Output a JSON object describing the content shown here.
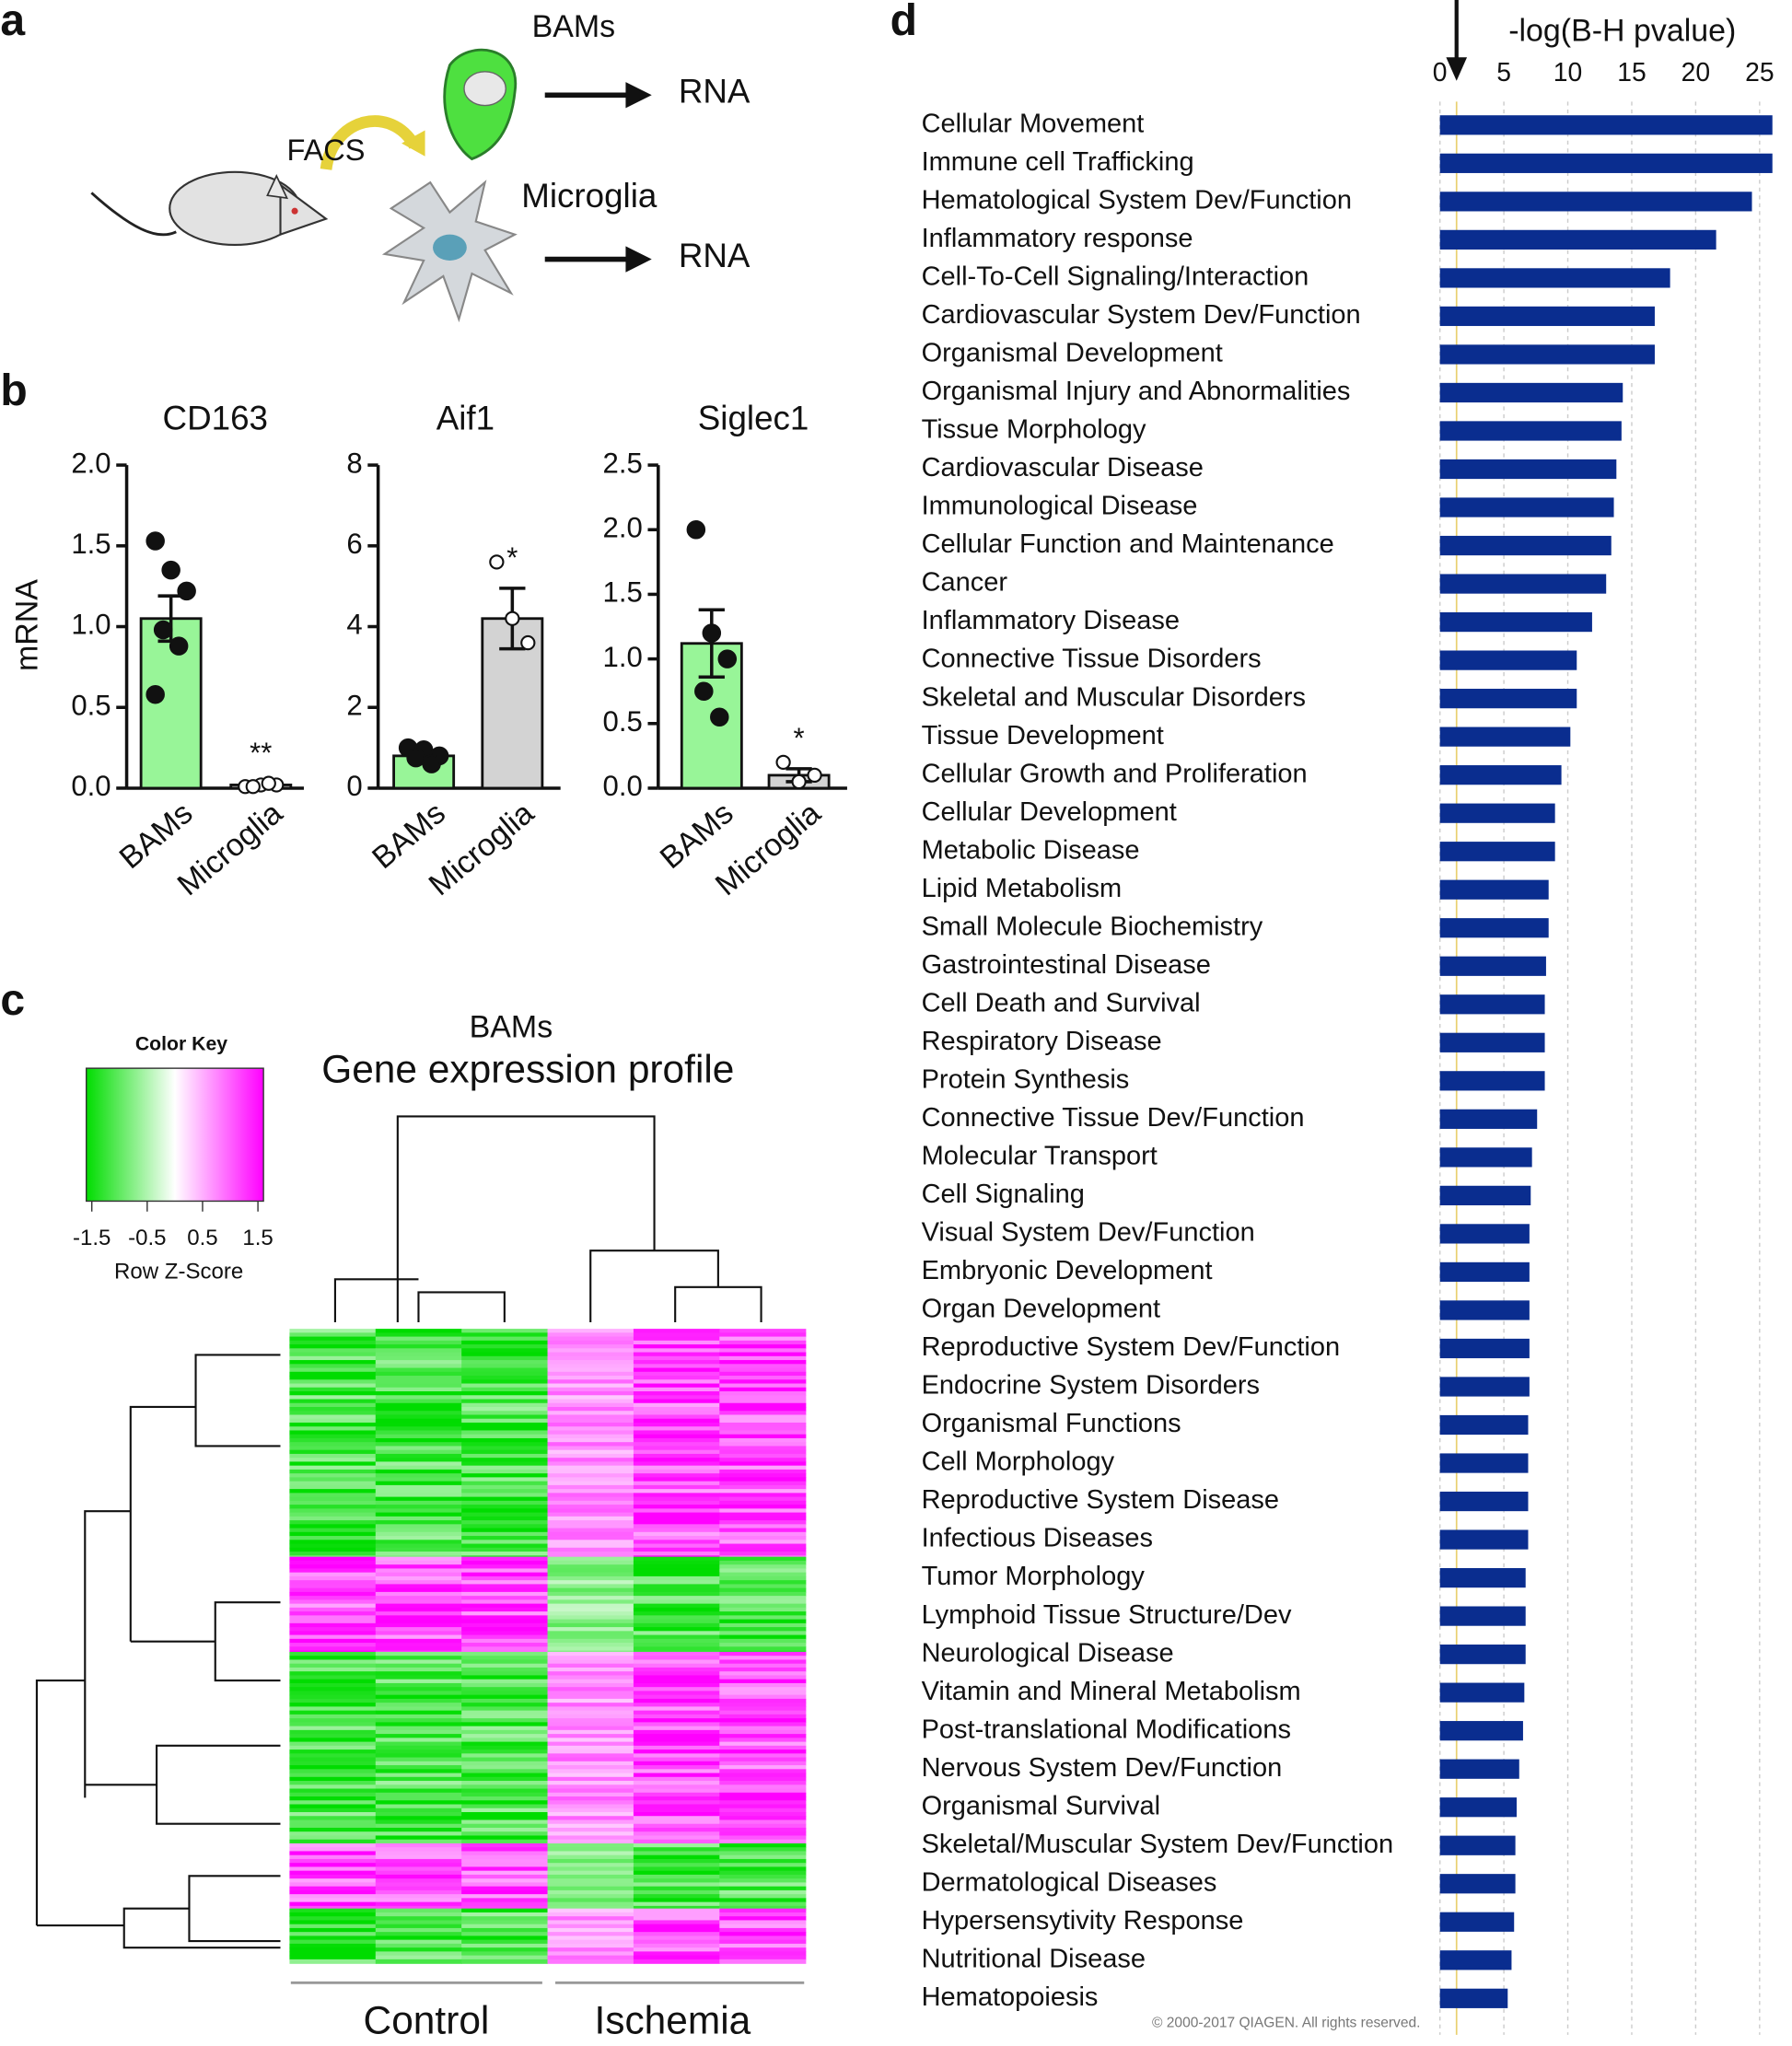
{
  "panel_labels": [
    "a",
    "b",
    "c",
    "d"
  ],
  "diagram": {
    "bams": "BAMs",
    "facs": "FACS",
    "microglia": "Microglia",
    "rna": [
      "RNA",
      "RNA"
    ]
  },
  "heatmap": {
    "color_key": "Color Key",
    "key_ticks": [
      -1.5,
      -0.5,
      0.5,
      1.5
    ],
    "key_range": [
      -1.6,
      1.6
    ],
    "key_label": "Row Z-Score",
    "title": "BAMs",
    "subtitle": "Gene expression profile",
    "groups": [
      "Control",
      "Ischemia"
    ]
  },
  "chart_data": [
    {
      "type": "bar",
      "title": "CD163",
      "ylabel": "mRNA",
      "categories": [
        "BAMs",
        "Microglia"
      ],
      "values": [
        1.05,
        0.02
      ],
      "errors": [
        0.14,
        0.01
      ],
      "points": [
        [
          1.53,
          1.35,
          1.22,
          0.98,
          0.88,
          0.58
        ],
        [
          0.01,
          0.02,
          0.02,
          0.01,
          0.03
        ]
      ],
      "colors": [
        "#98f598",
        "#d3d3d3"
      ],
      "annotations": [
        null,
        "**"
      ],
      "ylim": [
        0,
        2
      ],
      "yticks": [
        {
          "value": 0,
          "label": "0.0"
        },
        0.5,
        {
          "value": 1,
          "label": "1.0"
        },
        1.5,
        {
          "value": 2,
          "label": "2.0"
        }
      ]
    },
    {
      "type": "bar",
      "title": "Aif1",
      "categories": [
        "BAMs",
        "Microglia"
      ],
      "values": [
        0.8,
        4.2
      ],
      "errors": [
        0.1,
        0.75
      ],
      "points": [
        [
          1.0,
          0.95,
          0.8,
          0.75,
          0.6
        ],
        [
          5.6,
          4.2,
          3.6
        ]
      ],
      "colors": [
        "#98f598",
        "#d3d3d3"
      ],
      "annotations": [
        null,
        "*"
      ],
      "ylim": [
        0,
        8
      ],
      "yticks": [
        0,
        2,
        4,
        6,
        8
      ]
    },
    {
      "type": "bar",
      "title": "Siglec1",
      "categories": [
        "BAMs",
        "Microglia"
      ],
      "values": [
        1.12,
        0.1
      ],
      "errors": [
        0.26,
        0.05
      ],
      "points": [
        [
          2.0,
          1.2,
          1.0,
          0.75,
          0.55
        ],
        [
          0.2,
          0.05,
          0.1
        ]
      ],
      "colors": [
        "#98f598",
        "#d3d3d3"
      ],
      "annotations": [
        null,
        "*"
      ],
      "ylim": [
        0,
        2.5
      ],
      "yticks": [
        {
          "value": 0,
          "label": "0.0"
        },
        0.5,
        {
          "value": 1,
          "label": "1.0"
        },
        1.5,
        {
          "value": 2,
          "label": "2.0"
        },
        2.5
      ]
    },
    {
      "type": "hbar",
      "title": "-log(B-H pvalue)",
      "color": "#0a2d8f",
      "xlim": [
        0,
        27
      ],
      "xticks": [
        0,
        5,
        10,
        15,
        20,
        25
      ],
      "grid": true,
      "threshold": 1.3,
      "footnote": "© 2000-2017 QIAGEN. All rights reserved.",
      "categories": [
        "Cellular Movement",
        "Immune cell Trafficking",
        "Hematological System Dev/Function",
        "Inflammatory response",
        "Cell-To-Cell Signaling/Interaction",
        "Cardiovascular System Dev/Function",
        "Organismal Development",
        "Organismal Injury and Abnormalities",
        "Tissue Morphology",
        "Cardiovascular Disease",
        "Immunological Disease",
        "Cellular Function and Maintenance",
        "Cancer",
        "Inflammatory Disease",
        "Connective Tissue Disorders",
        "Skeletal and Muscular Disorders",
        "Tissue Development",
        "Cellular Growth and Proliferation",
        "Cellular Development",
        "Metabolic Disease",
        "Lipid Metabolism",
        "Small Molecule Biochemistry",
        "Gastrointestinal Disease",
        "Cell Death and Survival",
        "Respiratory Disease",
        "Protein Synthesis",
        "Connective Tissue Dev/Function",
        "Molecular Transport",
        "Cell Signaling",
        "Visual System Dev/Function",
        "Embryonic Development",
        "Organ Development",
        "Reproductive System Dev/Function",
        "Endocrine System Disorders",
        "Organismal Functions",
        "Cell Morphology",
        "Reproductive System Disease",
        "Infectious Diseases",
        "Tumor Morphology",
        "Lymphoid Tissue Structure/Dev",
        "Neurological Disease",
        "Vitamin and Mineral Metabolism",
        "Post-translational Modifications",
        "Nervous System Dev/Function",
        "Organismal Survival",
        "Skeletal/Muscular System Dev/Function",
        "Dermatological Diseases",
        "Hypersensytivity Response",
        "Nutritional Disease",
        "Hematopoiesis"
      ],
      "values": [
        26.0,
        26.0,
        24.4,
        21.6,
        18.0,
        16.8,
        16.8,
        14.3,
        14.2,
        13.8,
        13.6,
        13.4,
        13.0,
        11.9,
        10.7,
        10.7,
        10.2,
        9.5,
        9.0,
        9.0,
        8.5,
        8.5,
        8.3,
        8.2,
        8.2,
        8.2,
        7.6,
        7.2,
        7.1,
        7.0,
        7.0,
        7.0,
        7.0,
        7.0,
        6.9,
        6.9,
        6.9,
        6.9,
        6.7,
        6.7,
        6.7,
        6.6,
        6.5,
        6.2,
        6.0,
        5.9,
        5.9,
        5.8,
        5.6,
        5.3
      ]
    }
  ]
}
